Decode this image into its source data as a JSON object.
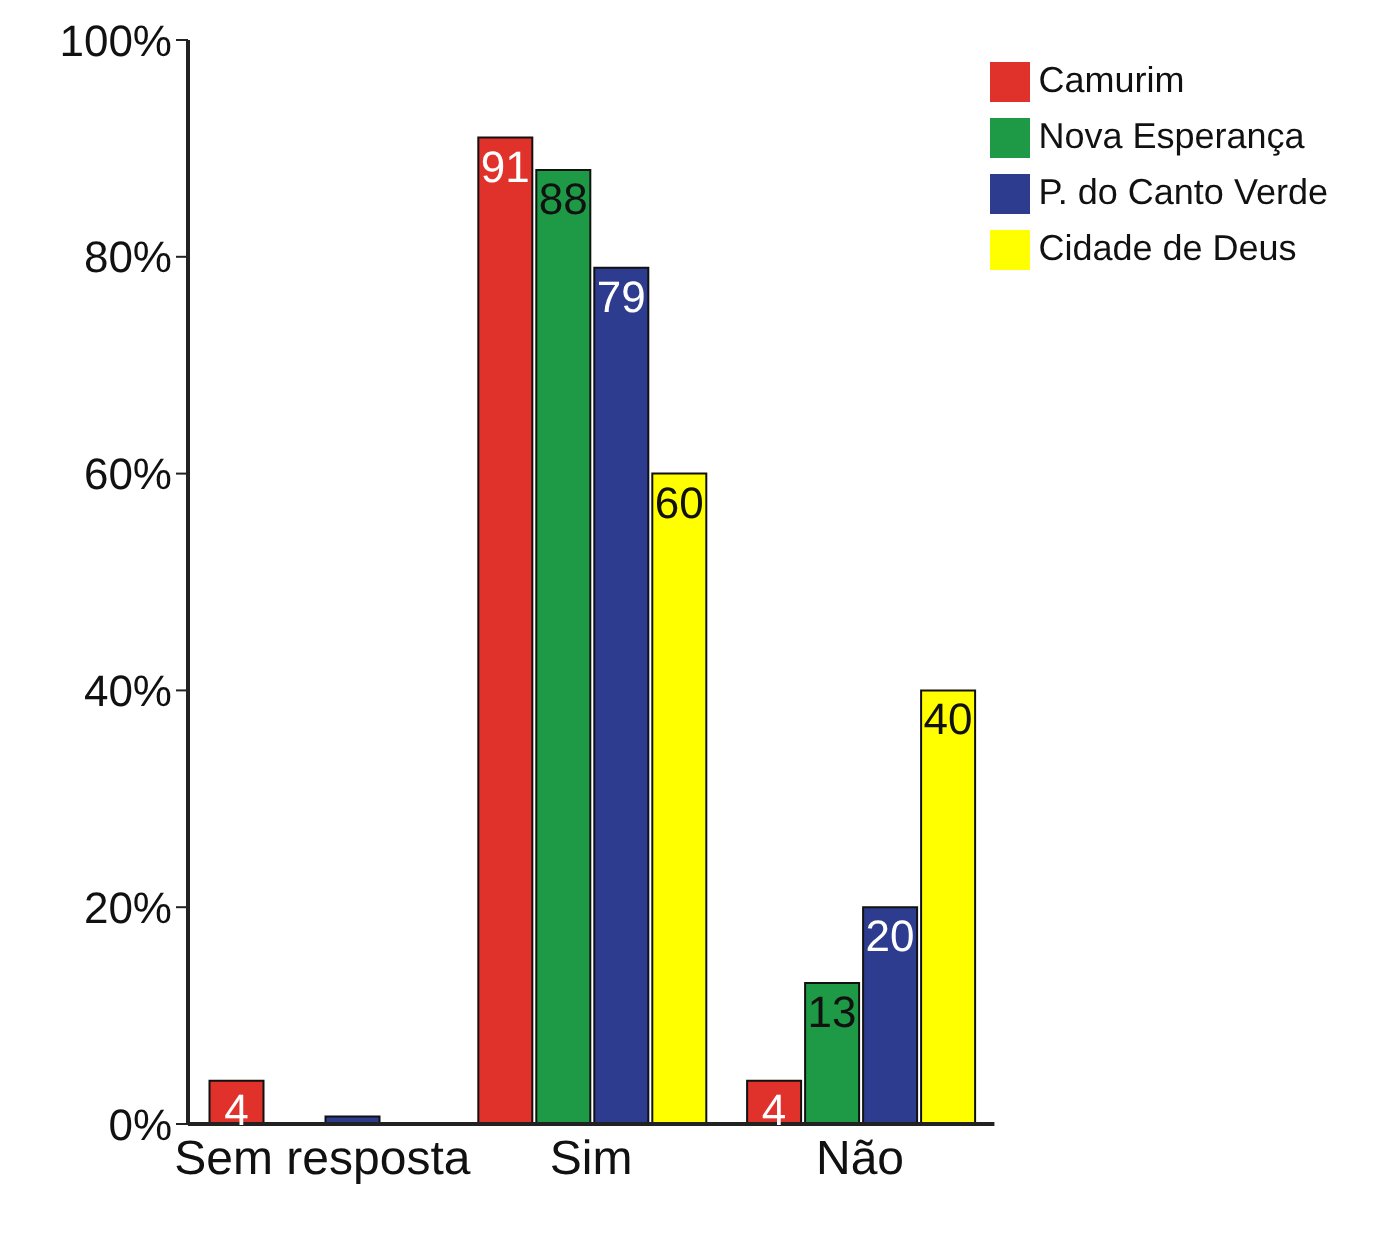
{
  "chart_data": {
    "type": "bar",
    "categories": [
      "Sem resposta",
      "Sim",
      "Não"
    ],
    "series": [
      {
        "name": "Camurim",
        "color": "#e0312b",
        "values": [
          4,
          91,
          4
        ],
        "value_labels": [
          "4",
          "91",
          "4"
        ]
      },
      {
        "name": "Nova Esperança",
        "color": "#1e9a46",
        "values": [
          0,
          88,
          13
        ],
        "value_labels": [
          null,
          "88",
          "13"
        ]
      },
      {
        "name": "P. do Canto Verde",
        "color": "#2d3c8f",
        "values": [
          0.7,
          79,
          20
        ],
        "value_labels": [
          null,
          "79",
          "20"
        ]
      },
      {
        "name": "Cidade de Deus",
        "color": "#ffff00",
        "values": [
          0,
          60,
          40
        ],
        "value_labels": [
          null,
          "60",
          "40"
        ]
      }
    ],
    "ylim": [
      0,
      100
    ],
    "yticks": [
      {
        "value": 0,
        "label": "0%"
      },
      {
        "value": 20,
        "label": "20%"
      },
      {
        "value": 40,
        "label": "40%"
      },
      {
        "value": 60,
        "label": "60%"
      },
      {
        "value": 80,
        "label": "80%"
      },
      {
        "value": 100,
        "label": "100%"
      }
    ],
    "grid": false,
    "legend": "top right"
  }
}
